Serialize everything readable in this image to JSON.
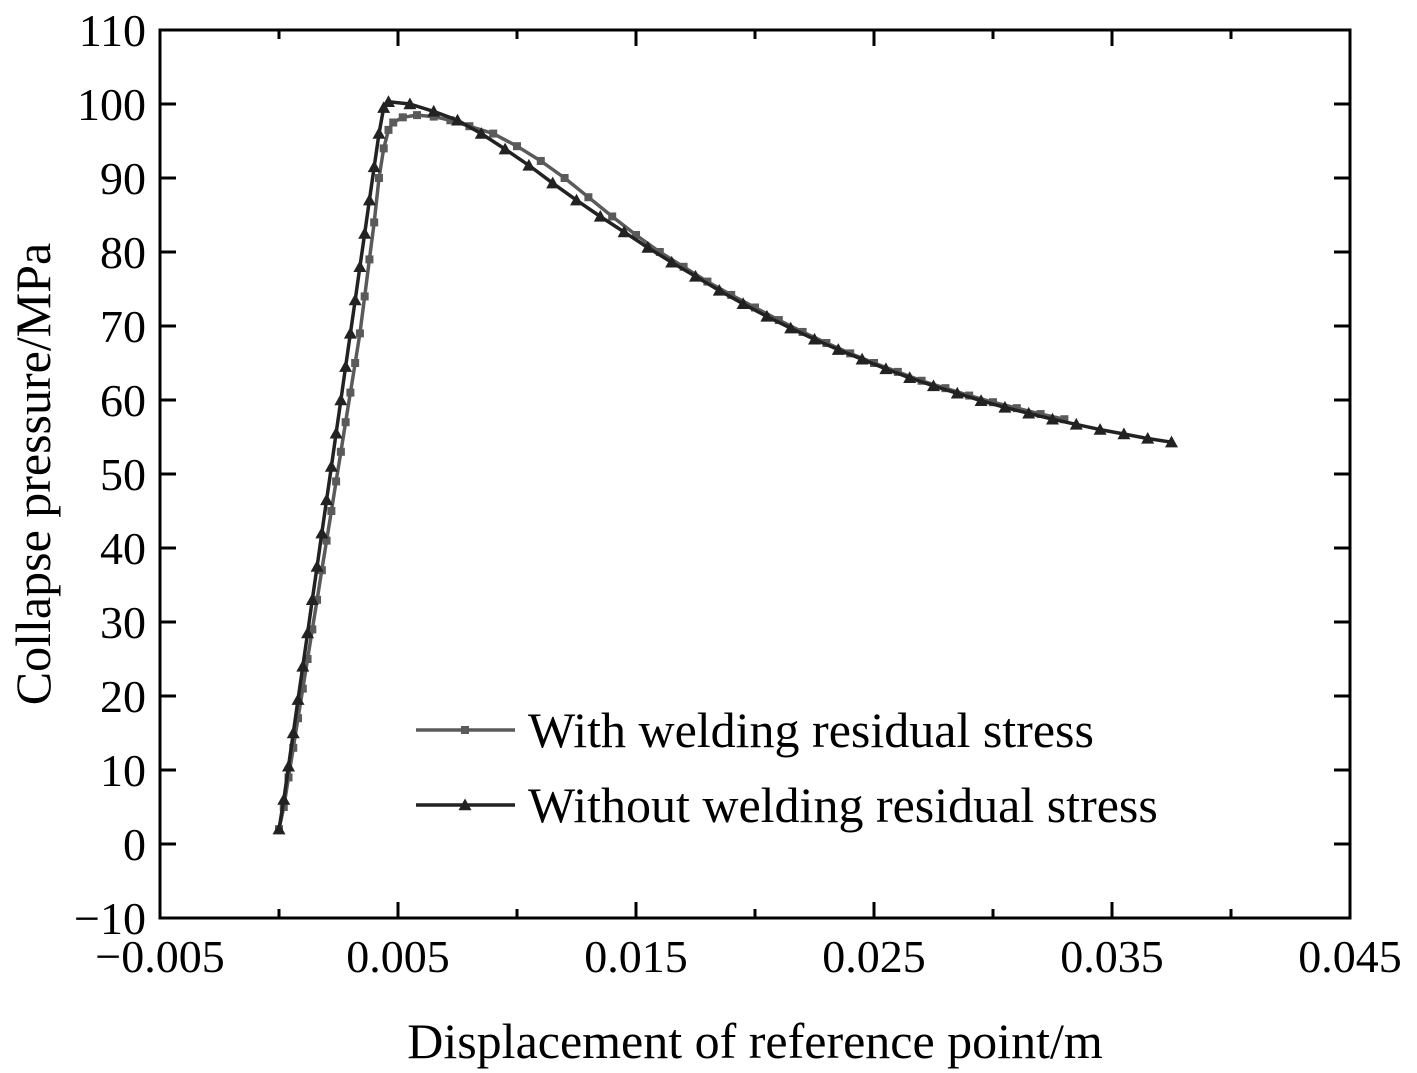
{
  "chart_data": {
    "type": "line",
    "xlabel": "Displacement of reference point/m",
    "ylabel": "Collapse pressure/MPa",
    "xlim": [
      -0.005,
      0.045
    ],
    "ylim": [
      -10,
      110
    ],
    "x_ticks": [
      -0.005,
      0.005,
      0.015,
      0.025,
      0.035,
      0.045
    ],
    "x_tick_labels": [
      "−0.005",
      "0.005",
      "0.015",
      "0.025",
      "0.035",
      "0.045"
    ],
    "y_ticks": [
      -10,
      0,
      10,
      20,
      30,
      40,
      50,
      60,
      70,
      80,
      90,
      100,
      110
    ],
    "y_tick_labels": [
      "−10",
      "0",
      "10",
      "20",
      "30",
      "40",
      "50",
      "60",
      "70",
      "80",
      "90",
      "100",
      "110"
    ],
    "grid": false,
    "legend_position": "bottom-right",
    "series": [
      {
        "name": "With welding residual stress",
        "marker": "square",
        "color": "#5a5a5a",
        "points": [
          [
            0.0,
            2
          ],
          [
            0.0002,
            5
          ],
          [
            0.0004,
            9
          ],
          [
            0.0006,
            13
          ],
          [
            0.0008,
            17
          ],
          [
            0.001,
            21
          ],
          [
            0.0012,
            25
          ],
          [
            0.0014,
            29
          ],
          [
            0.0016,
            33
          ],
          [
            0.0018,
            37
          ],
          [
            0.002,
            41
          ],
          [
            0.0022,
            45
          ],
          [
            0.0024,
            49
          ],
          [
            0.0026,
            53
          ],
          [
            0.0028,
            57
          ],
          [
            0.003,
            61
          ],
          [
            0.0032,
            65
          ],
          [
            0.0034,
            69
          ],
          [
            0.0036,
            74
          ],
          [
            0.0038,
            79
          ],
          [
            0.004,
            84
          ],
          [
            0.0042,
            90
          ],
          [
            0.0044,
            94
          ],
          [
            0.0046,
            96.5
          ],
          [
            0.0048,
            97.5
          ],
          [
            0.0052,
            98.2
          ],
          [
            0.0058,
            98.5
          ],
          [
            0.0065,
            98.3
          ],
          [
            0.0072,
            97.8
          ],
          [
            0.008,
            97.0
          ],
          [
            0.009,
            96.0
          ],
          [
            0.01,
            94.3
          ],
          [
            0.011,
            92.3
          ],
          [
            0.012,
            90.0
          ],
          [
            0.013,
            87.4
          ],
          [
            0.014,
            84.8
          ],
          [
            0.015,
            82.3
          ],
          [
            0.016,
            80.0
          ],
          [
            0.017,
            78.0
          ],
          [
            0.018,
            76.0
          ],
          [
            0.019,
            74.2
          ],
          [
            0.02,
            72.5
          ],
          [
            0.021,
            70.8
          ],
          [
            0.022,
            69.2
          ],
          [
            0.023,
            67.7
          ],
          [
            0.024,
            66.3
          ],
          [
            0.025,
            65.0
          ],
          [
            0.026,
            63.8
          ],
          [
            0.027,
            62.6
          ],
          [
            0.028,
            61.6
          ],
          [
            0.029,
            60.6
          ],
          [
            0.03,
            59.7
          ],
          [
            0.031,
            58.9
          ],
          [
            0.032,
            58.1
          ],
          [
            0.033,
            57.4
          ]
        ]
      },
      {
        "name": "Without welding residual stress",
        "marker": "triangle",
        "color": "#222222",
        "points": [
          [
            0.0,
            2
          ],
          [
            0.0002,
            6
          ],
          [
            0.0004,
            10.5
          ],
          [
            0.0006,
            15
          ],
          [
            0.0008,
            19.5
          ],
          [
            0.001,
            24
          ],
          [
            0.0012,
            28.5
          ],
          [
            0.0014,
            33
          ],
          [
            0.0016,
            37.5
          ],
          [
            0.0018,
            42
          ],
          [
            0.002,
            46.5
          ],
          [
            0.0022,
            51
          ],
          [
            0.0024,
            55.5
          ],
          [
            0.0026,
            60
          ],
          [
            0.0028,
            64.5
          ],
          [
            0.003,
            69
          ],
          [
            0.0032,
            73.5
          ],
          [
            0.0034,
            78
          ],
          [
            0.0036,
            82.5
          ],
          [
            0.0038,
            87
          ],
          [
            0.004,
            91.5
          ],
          [
            0.0042,
            96
          ],
          [
            0.0044,
            99.5
          ],
          [
            0.0046,
            100.3
          ],
          [
            0.0055,
            100.0
          ],
          [
            0.0065,
            99.0
          ],
          [
            0.0075,
            97.8
          ],
          [
            0.0085,
            96.0
          ],
          [
            0.0095,
            93.9
          ],
          [
            0.0105,
            91.7
          ],
          [
            0.0115,
            89.3
          ],
          [
            0.0125,
            87.0
          ],
          [
            0.0135,
            84.8
          ],
          [
            0.0145,
            82.7
          ],
          [
            0.0155,
            80.6
          ],
          [
            0.0165,
            78.6
          ],
          [
            0.0175,
            76.7
          ],
          [
            0.0185,
            74.8
          ],
          [
            0.0195,
            73.0
          ],
          [
            0.0205,
            71.3
          ],
          [
            0.0215,
            69.7
          ],
          [
            0.0225,
            68.2
          ],
          [
            0.0235,
            66.8
          ],
          [
            0.0245,
            65.5
          ],
          [
            0.0255,
            64.2
          ],
          [
            0.0265,
            63.0
          ],
          [
            0.0275,
            61.9
          ],
          [
            0.0285,
            60.9
          ],
          [
            0.0295,
            59.9
          ],
          [
            0.0305,
            59.0
          ],
          [
            0.0315,
            58.2
          ],
          [
            0.0325,
            57.4
          ],
          [
            0.0335,
            56.7
          ],
          [
            0.0345,
            56.0
          ],
          [
            0.0355,
            55.4
          ],
          [
            0.0365,
            54.8
          ],
          [
            0.0375,
            54.3
          ]
        ]
      }
    ]
  }
}
